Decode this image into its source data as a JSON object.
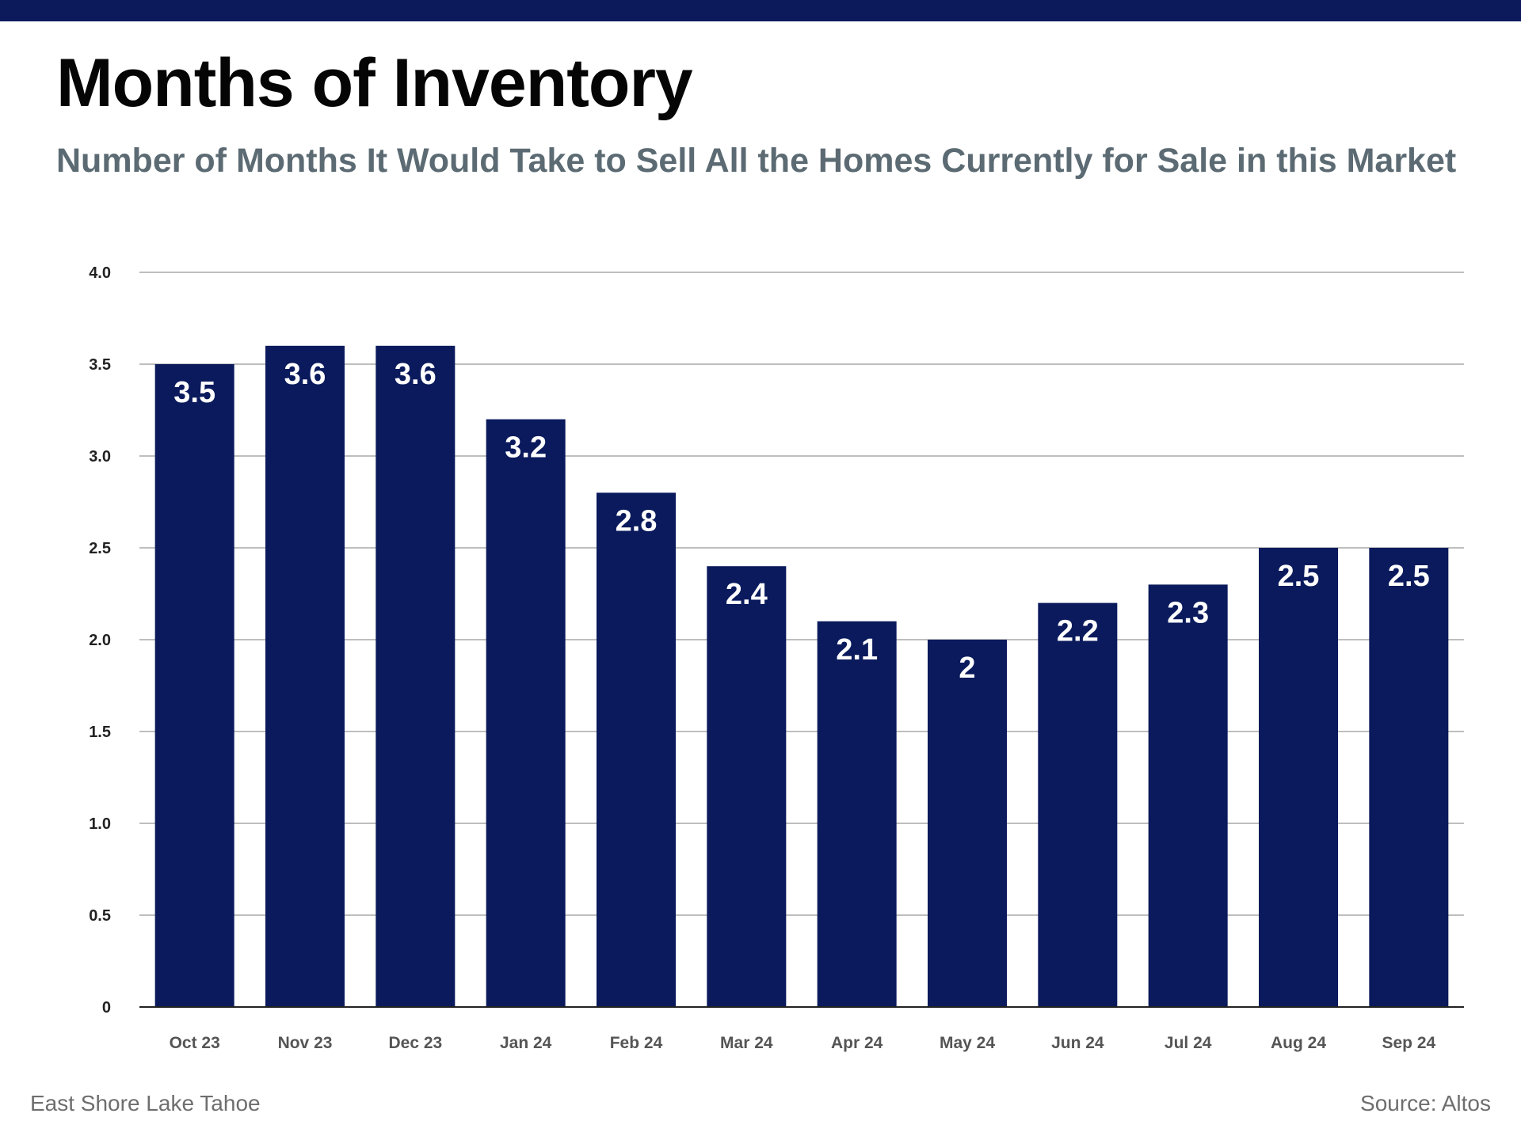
{
  "header": {
    "title": "Months of Inventory",
    "subtitle": "Number of Months It Would Take to Sell All the Homes Currently for Sale in this Market"
  },
  "footer": {
    "location": "East Shore Lake Tahoe",
    "source": "Source: Altos"
  },
  "colors": {
    "band": "#0c1a5c",
    "bar": "#0a1a5c",
    "bar_label": "#ffffff",
    "grid": "#a9a9a9",
    "axis": "#222222",
    "tick_label": "#222222",
    "category_label": "#555555"
  },
  "chart_data": {
    "type": "bar",
    "title": "Months of Inventory",
    "subtitle": "Number of Months It Would Take to Sell All the Homes Currently for Sale in this Market",
    "xlabel": "",
    "ylabel": "",
    "ylim": [
      0,
      4
    ],
    "grid": true,
    "legend": "none",
    "y_ticks": [
      0,
      0.5,
      1,
      1.5,
      2,
      2.5,
      3,
      3.5,
      4
    ],
    "y_tick_labels": [
      "0",
      "0.5",
      "1.0",
      "1.5",
      "2.0",
      "2.5",
      "3.0",
      "3.5",
      "4.0"
    ],
    "categories": [
      "Oct 23",
      "Nov 23",
      "Dec 23",
      "Jan 24",
      "Feb 24",
      "Mar 24",
      "Apr 24",
      "May 24",
      "Jun 24",
      "Jul 24",
      "Aug 24",
      "Sep 24"
    ],
    "values": [
      3.5,
      3.6,
      3.6,
      3.2,
      2.8,
      2.4,
      2.1,
      2,
      2.2,
      2.3,
      2.5,
      2.5
    ],
    "data_labels": [
      "3.5",
      "3.6",
      "3.6",
      "3.2",
      "2.8",
      "2.4",
      "2.1",
      "2",
      "2.2",
      "2.3",
      "2.5",
      "2.5"
    ]
  }
}
